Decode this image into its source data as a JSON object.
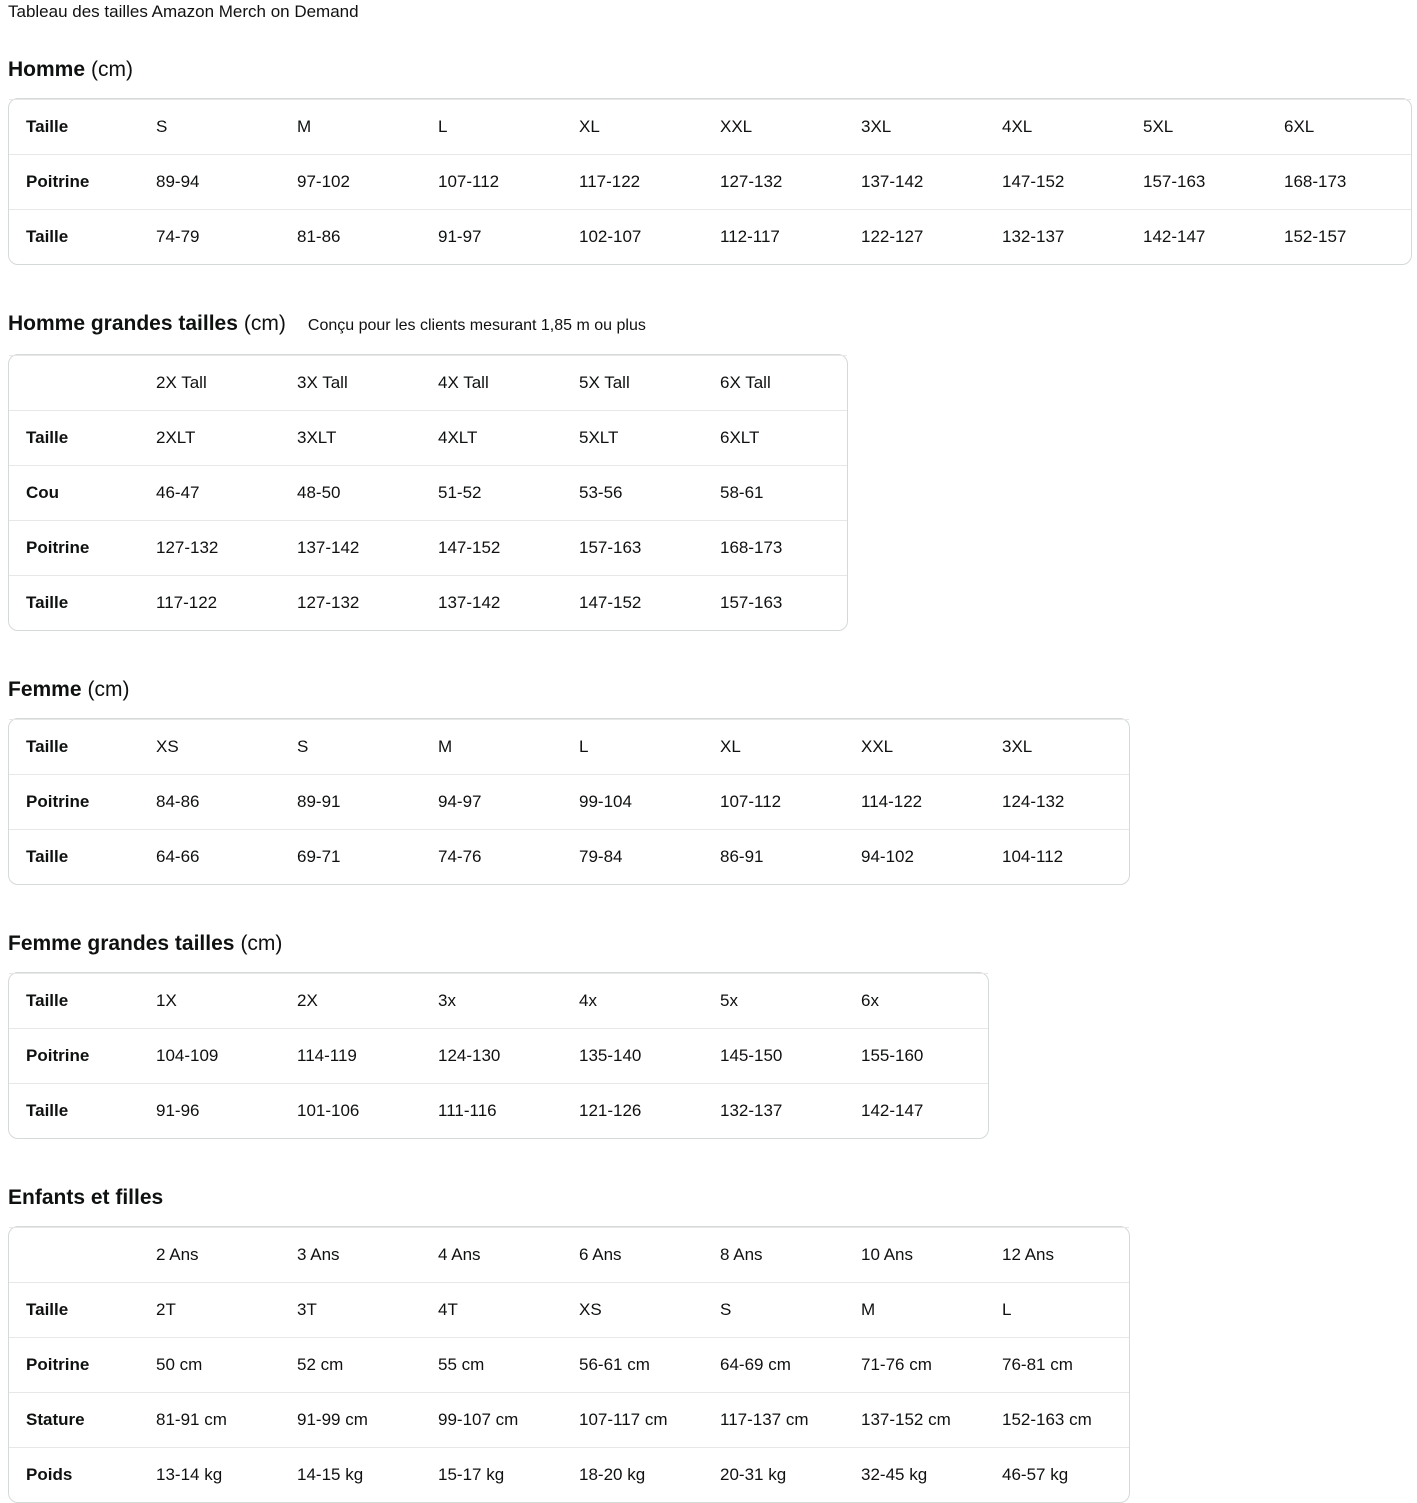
{
  "page": {
    "title": "Tableau des tailles Amazon Merch on Demand"
  },
  "colors": {
    "text": "#0f1111",
    "table_border": "#d5d9d9",
    "row_separator": "#e7e7e7",
    "background": "#ffffff"
  },
  "sections": [
    {
      "heading_bold": "Homme",
      "heading_unit": "(cm)",
      "note": "",
      "table": {
        "header": {
          "label": "Taille",
          "cols": [
            "S",
            "M",
            "L",
            "XL",
            "XXL",
            "3XL",
            "4XL",
            "5XL",
            "6XL"
          ]
        },
        "rows": [
          {
            "label": "Poitrine",
            "values": [
              "89-94",
              "97-102",
              "107-112",
              "117-122",
              "127-132",
              "137-142",
              "147-152",
              "157-163",
              "168-173"
            ]
          },
          {
            "label": "Taille",
            "values": [
              "74-79",
              "81-86",
              "91-97",
              "102-107",
              "112-117",
              "122-127",
              "132-137",
              "142-147",
              "152-157"
            ]
          }
        ]
      }
    },
    {
      "heading_bold": "Homme grandes tailles",
      "heading_unit": "(cm)",
      "note": "Conçu pour les clients mesurant 1,85 m ou plus",
      "table": {
        "header": {
          "label": "",
          "cols": [
            "2X Tall",
            "3X Tall",
            "4X Tall",
            "5X Tall",
            "6X Tall"
          ]
        },
        "rows": [
          {
            "label": "Taille",
            "values": [
              "2XLT",
              "3XLT",
              "4XLT",
              "5XLT",
              "6XLT"
            ]
          },
          {
            "label": "Cou",
            "values": [
              "46-47",
              "48-50",
              "51-52",
              "53-56",
              "58-61"
            ]
          },
          {
            "label": "Poitrine",
            "values": [
              "127-132",
              "137-142",
              "147-152",
              "157-163",
              "168-173"
            ]
          },
          {
            "label": "Taille",
            "values": [
              "117-122",
              "127-132",
              "137-142",
              "147-152",
              "157-163"
            ]
          }
        ]
      }
    },
    {
      "heading_bold": "Femme",
      "heading_unit": "(cm)",
      "note": "",
      "table": {
        "header": {
          "label": "Taille",
          "cols": [
            "XS",
            "S",
            "M",
            "L",
            "XL",
            "XXL",
            "3XL"
          ]
        },
        "rows": [
          {
            "label": "Poitrine",
            "values": [
              "84-86",
              "89-91",
              "94-97",
              "99-104",
              "107-112",
              "114-122",
              "124-132"
            ]
          },
          {
            "label": "Taille",
            "values": [
              "64-66",
              "69-71",
              "74-76",
              "79-84",
              "86-91",
              "94-102",
              "104-112"
            ]
          }
        ]
      }
    },
    {
      "heading_bold": "Femme grandes tailles",
      "heading_unit": "(cm)",
      "note": "",
      "table": {
        "header": {
          "label": "Taille",
          "cols": [
            "1X",
            "2X",
            "3x",
            "4x",
            "5x",
            "6x"
          ]
        },
        "rows": [
          {
            "label": "Poitrine",
            "values": [
              "104-109",
              "114-119",
              "124-130",
              "135-140",
              "145-150",
              "155-160"
            ]
          },
          {
            "label": "Taille",
            "values": [
              "91-96",
              "101-106",
              "111-116",
              "121-126",
              "132-137",
              "142-147"
            ]
          }
        ]
      }
    },
    {
      "heading_bold": "Enfants et filles",
      "heading_unit": "",
      "note": "",
      "table": {
        "header": {
          "label": "",
          "cols": [
            "2 Ans",
            "3 Ans",
            "4 Ans",
            "6 Ans",
            "8 Ans",
            "10 Ans",
            "12 Ans"
          ]
        },
        "rows": [
          {
            "label": "Taille",
            "values": [
              "2T",
              "3T",
              "4T",
              "XS",
              "S",
              "M",
              "L"
            ]
          },
          {
            "label": "Poitrine",
            "values": [
              "50 cm",
              "52 cm",
              "55 cm",
              "56-61 cm",
              "64-69 cm",
              "71-76 cm",
              "76-81 cm"
            ]
          },
          {
            "label": "Stature",
            "values": [
              "81-91 cm",
              "91-99 cm",
              "99-107 cm",
              "107-117 cm",
              "117-137 cm",
              "137-152 cm",
              "152-163 cm"
            ]
          },
          {
            "label": "Poids",
            "values": [
              "13-14 kg",
              "14-15 kg",
              "15-17 kg",
              "18-20 kg",
              "20-31 kg",
              "32-45 kg",
              "46-57 kg"
            ]
          }
        ]
      }
    }
  ]
}
